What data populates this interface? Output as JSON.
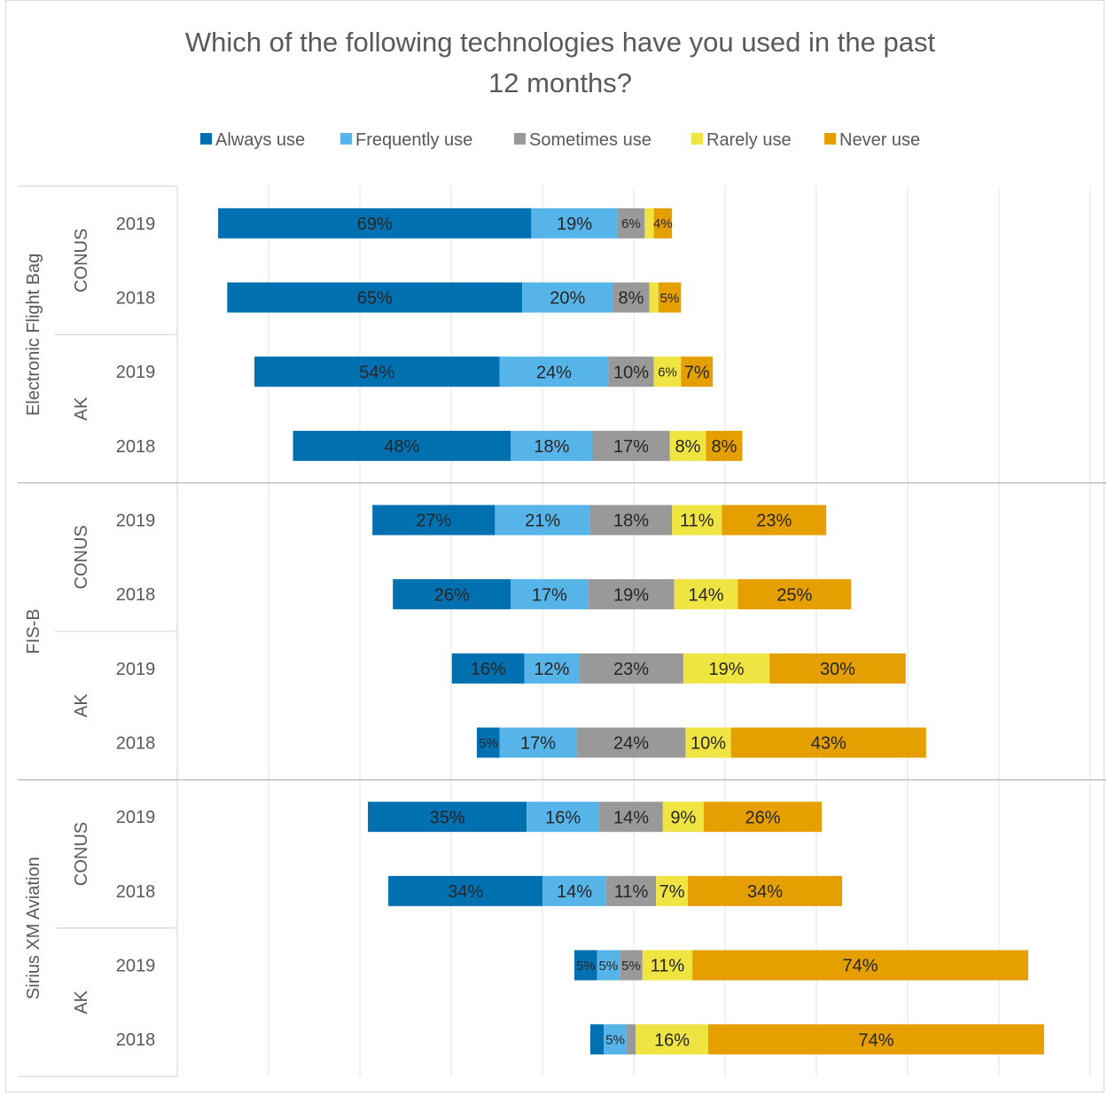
{
  "chart_data": {
    "type": "bar",
    "title": "Which of the following technologies have you used in the past 12 months?",
    "title_lines": [
      "Which of the following technologies have you used in the past",
      "12 months?"
    ],
    "orientation": "horizontal",
    "stacked": true,
    "layout": "diverging",
    "legend_position": "top",
    "grid": true,
    "series": [
      {
        "name": "Always use",
        "color": "#0070B0"
      },
      {
        "name": "Frequently use",
        "color": "#56B4E9"
      },
      {
        "name": "Sometimes use",
        "color": "#999999"
      },
      {
        "name": "Rarely use",
        "color": "#F0E442"
      },
      {
        "name": "Never use",
        "color": "#E69F00"
      }
    ],
    "groups": [
      {
        "label": "Electronic Flight Bag",
        "regions": [
          {
            "label": "CONUS",
            "rows": [
              {
                "year": "2019",
                "values": [
                  69,
                  19,
                  6,
                  2,
                  4
                ],
                "labels": [
                  "69%",
                  "19%",
                  "6%",
                  "",
                  "4%"
                ]
              },
              {
                "year": "2018",
                "values": [
                  65,
                  20,
                  8,
                  2,
                  5
                ],
                "labels": [
                  "65%",
                  "20%",
                  "8%",
                  "",
                  "5%"
                ]
              }
            ]
          },
          {
            "label": "AK",
            "rows": [
              {
                "year": "2019",
                "values": [
                  54,
                  24,
                  10,
                  6,
                  7
                ],
                "labels": [
                  "54%",
                  "24%",
                  "10%",
                  "6%",
                  "7%"
                ]
              },
              {
                "year": "2018",
                "values": [
                  48,
                  18,
                  17,
                  8,
                  8
                ],
                "labels": [
                  "48%",
                  "18%",
                  "17%",
                  "8%",
                  "8%"
                ]
              }
            ]
          }
        ]
      },
      {
        "label": "FIS-B",
        "regions": [
          {
            "label": "CONUS",
            "rows": [
              {
                "year": "2019",
                "values": [
                  27,
                  21,
                  18,
                  11,
                  23
                ],
                "labels": [
                  "27%",
                  "21%",
                  "18%",
                  "11%",
                  "23%"
                ]
              },
              {
                "year": "2018",
                "values": [
                  26,
                  17,
                  19,
                  14,
                  25
                ],
                "labels": [
                  "26%",
                  "17%",
                  "19%",
                  "14%",
                  "25%"
                ]
              }
            ]
          },
          {
            "label": "AK",
            "rows": [
              {
                "year": "2019",
                "values": [
                  16,
                  12,
                  23,
                  19,
                  30
                ],
                "labels": [
                  "16%",
                  "12%",
                  "23%",
                  "19%",
                  "30%"
                ]
              },
              {
                "year": "2018",
                "values": [
                  5,
                  17,
                  24,
                  10,
                  43
                ],
                "labels": [
                  "5%",
                  "17%",
                  "24%",
                  "10%",
                  "43%"
                ]
              }
            ]
          }
        ]
      },
      {
        "label": "Sirius XM Aviation",
        "regions": [
          {
            "label": "CONUS",
            "rows": [
              {
                "year": "2019",
                "values": [
                  35,
                  16,
                  14,
                  9,
                  26
                ],
                "labels": [
                  "35%",
                  "16%",
                  "14%",
                  "9%",
                  "26%"
                ]
              },
              {
                "year": "2018",
                "values": [
                  34,
                  14,
                  11,
                  7,
                  34
                ],
                "labels": [
                  "34%",
                  "14%",
                  "11%",
                  "7%",
                  "34%"
                ]
              }
            ]
          },
          {
            "label": "AK",
            "rows": [
              {
                "year": "2019",
                "values": [
                  5,
                  5,
                  5,
                  11,
                  74
                ],
                "labels": [
                  "5%",
                  "5%",
                  "5%",
                  "11%",
                  "74%"
                ]
              },
              {
                "year": "2018",
                "values": [
                  3,
                  5,
                  2,
                  16,
                  74
                ],
                "labels": [
                  "",
                  "5%",
                  "",
                  "16%",
                  "74%"
                ]
              }
            ]
          }
        ]
      }
    ]
  }
}
